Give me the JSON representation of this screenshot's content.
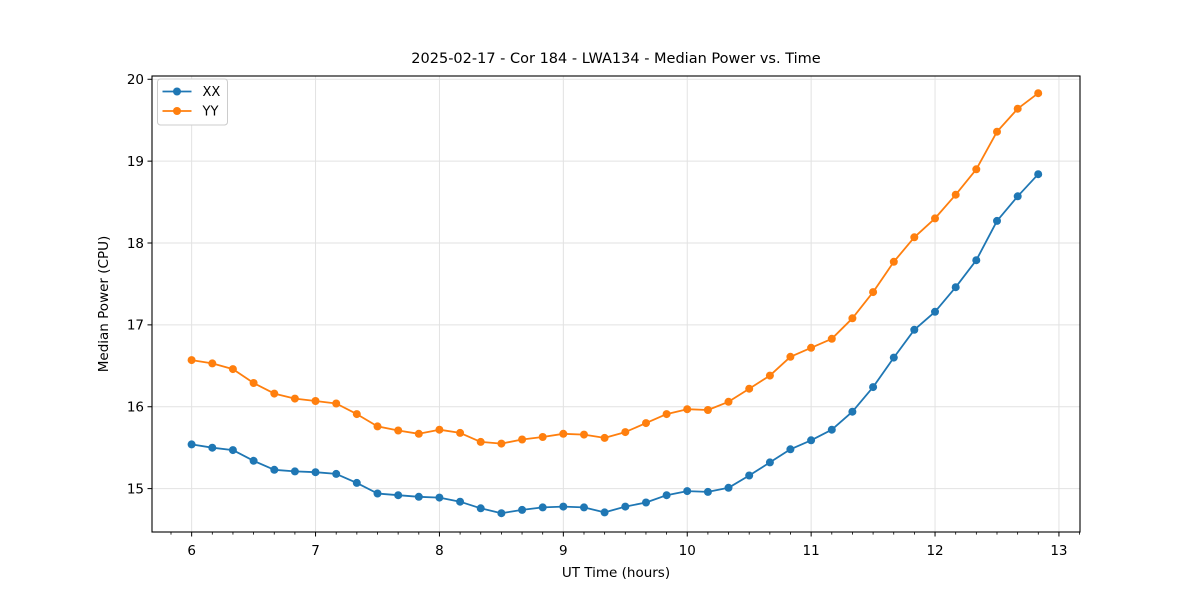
{
  "figure": {
    "background": "#ffffff"
  },
  "chart_data": {
    "type": "line",
    "title": "2025-02-17 - Cor 184 - LWA134 - Median Power vs. Time",
    "xlabel": "UT Time (hours)",
    "ylabel": "Median Power (CPU)",
    "xlim": [
      5.68,
      13.17
    ],
    "ylim": [
      14.47,
      20.04
    ],
    "x_major_ticks": [
      6,
      7,
      8,
      9,
      10,
      11,
      12,
      13
    ],
    "x_major_tick_labels": [
      "6",
      "7",
      "8",
      "9",
      "10",
      "11",
      "12",
      "13"
    ],
    "y_major_ticks": [
      15,
      16,
      17,
      18,
      19,
      20
    ],
    "y_major_tick_labels": [
      "15",
      "16",
      "17",
      "18",
      "19",
      "20"
    ],
    "x_minor_step": 0.166667,
    "grid": true,
    "grid_color": "#e2e2e2",
    "spine_color": "#000000",
    "legend_position": "upper-left",
    "x": [
      6.0,
      6.167,
      6.333,
      6.5,
      6.667,
      6.833,
      7.0,
      7.167,
      7.333,
      7.5,
      7.667,
      7.833,
      8.0,
      8.167,
      8.333,
      8.5,
      8.667,
      8.833,
      9.0,
      9.167,
      9.333,
      9.5,
      9.667,
      9.833,
      10.0,
      10.167,
      10.333,
      10.5,
      10.667,
      10.833,
      11.0,
      11.167,
      11.333,
      11.5,
      11.667,
      11.833,
      12.0,
      12.167,
      12.333,
      12.5,
      12.667,
      12.833
    ],
    "series": [
      {
        "name": "XX",
        "color": "#1f77b4",
        "marker": "circle",
        "values": [
          15.54,
          15.5,
          15.47,
          15.34,
          15.23,
          15.21,
          15.2,
          15.18,
          15.07,
          14.94,
          14.92,
          14.9,
          14.89,
          14.84,
          14.76,
          14.7,
          14.74,
          14.77,
          14.78,
          14.77,
          14.71,
          14.78,
          14.83,
          14.92,
          14.97,
          14.96,
          15.01,
          15.16,
          15.32,
          15.48,
          15.59,
          15.72,
          15.94,
          16.24,
          16.6,
          16.94,
          17.16,
          17.46,
          17.79,
          18.27,
          18.57,
          18.84
        ]
      },
      {
        "name": "YY",
        "color": "#ff7f0e",
        "marker": "circle",
        "values": [
          16.57,
          16.53,
          16.46,
          16.29,
          16.16,
          16.1,
          16.07,
          16.04,
          15.91,
          15.76,
          15.71,
          15.67,
          15.72,
          15.68,
          15.57,
          15.55,
          15.6,
          15.63,
          15.67,
          15.66,
          15.62,
          15.69,
          15.8,
          15.91,
          15.97,
          15.96,
          16.06,
          16.22,
          16.38,
          16.61,
          16.72,
          16.83,
          17.08,
          17.4,
          17.77,
          18.07,
          18.3,
          18.59,
          18.9,
          19.36,
          19.64,
          19.83
        ]
      }
    ]
  }
}
